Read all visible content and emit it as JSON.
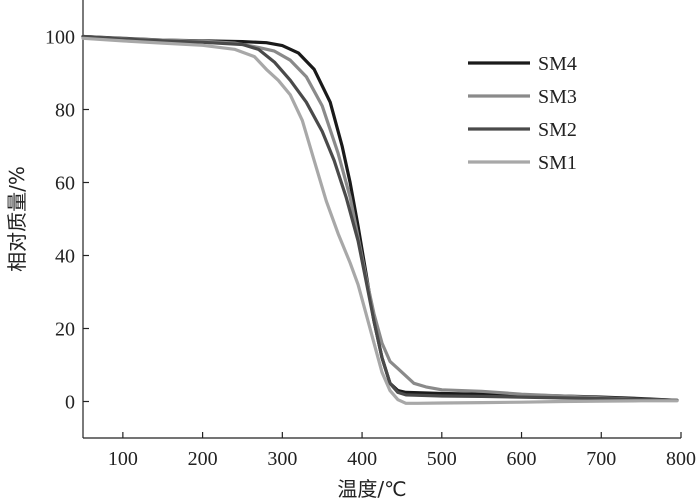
{
  "chart_data": {
    "type": "line",
    "xlabel": "温度/℃",
    "ylabel": "相对质量/%",
    "xlim": [
      50,
      800
    ],
    "ylim": [
      -10,
      110
    ],
    "xticks": [
      100,
      200,
      300,
      400,
      500,
      600,
      700,
      800
    ],
    "yticks": [
      0,
      20,
      40,
      60,
      80,
      100
    ],
    "grid": false,
    "legend_position": "top-right",
    "series": [
      {
        "name": "SM4",
        "color": "#1a1a1a",
        "x": [
          50,
          100,
          150,
          200,
          250,
          280,
          300,
          320,
          340,
          360,
          375,
          385,
          395,
          405,
          415,
          425,
          435,
          445,
          455,
          500,
          550,
          600,
          650,
          700,
          750,
          795
        ],
        "y": [
          100,
          99.5,
          99,
          98.8,
          98.6,
          98.3,
          97.5,
          95.5,
          91,
          82,
          70,
          60,
          48,
          35,
          22,
          12,
          5,
          3,
          2.5,
          2.2,
          2,
          1.8,
          1.5,
          1.2,
          0.8,
          0.3
        ]
      },
      {
        "name": "SM3",
        "color": "#8a8a8a",
        "x": [
          50,
          100,
          150,
          200,
          240,
          270,
          290,
          310,
          330,
          350,
          370,
          385,
          395,
          405,
          415,
          425,
          435,
          445,
          455,
          465,
          480,
          500,
          550,
          600,
          650,
          700,
          750,
          795
        ],
        "y": [
          100,
          99.4,
          99,
          98.7,
          98.2,
          97,
          96,
          93.5,
          89,
          81,
          68,
          56,
          45,
          34,
          24,
          16,
          11,
          9,
          7,
          5,
          4,
          3.2,
          2.8,
          2,
          1.5,
          1,
          0.6,
          0.3
        ]
      },
      {
        "name": "SM2",
        "color": "#4a4a4a",
        "x": [
          50,
          100,
          150,
          200,
          250,
          270,
          290,
          310,
          330,
          350,
          365,
          380,
          395,
          405,
          415,
          425,
          435,
          445,
          455,
          500,
          550,
          600,
          650,
          700,
          750,
          795
        ],
        "y": [
          100,
          99.3,
          98.8,
          98.4,
          97.8,
          96.5,
          93,
          88,
          82,
          74,
          66,
          56,
          44,
          33,
          22,
          12,
          5,
          2.5,
          1.8,
          1.5,
          1.4,
          1.2,
          1,
          0.8,
          0.6,
          0.3
        ]
      },
      {
        "name": "SM1",
        "color": "#a8a8a8",
        "x": [
          50,
          100,
          150,
          200,
          240,
          265,
          280,
          295,
          310,
          325,
          340,
          355,
          370,
          385,
          395,
          405,
          415,
          425,
          435,
          445,
          455,
          470,
          500,
          550,
          600,
          650,
          700,
          750,
          795
        ],
        "y": [
          99.5,
          98.8,
          98.2,
          97.6,
          96.5,
          94.5,
          91,
          88,
          84,
          77,
          66,
          55,
          46,
          38,
          32,
          24,
          16,
          8,
          3,
          0.5,
          -0.5,
          -0.5,
          -0.4,
          -0.3,
          -0.2,
          0,
          0.1,
          0.2,
          0.2
        ]
      }
    ]
  }
}
